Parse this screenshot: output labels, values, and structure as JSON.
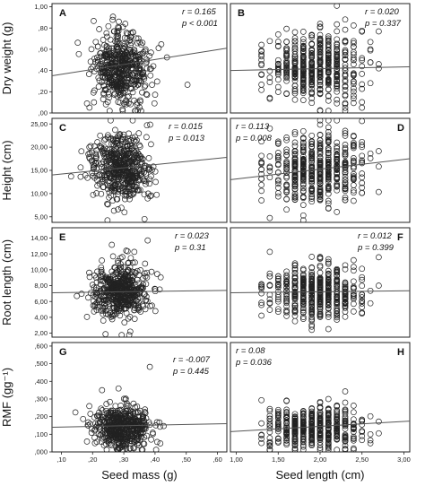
{
  "chart_data": [
    {
      "type": "scatter",
      "panel": "A",
      "col": 0,
      "row": 0,
      "ylabel": "Dry weight (g)",
      "xlabel": "",
      "x_domain": [
        0.07,
        0.63
      ],
      "ylim": [
        0.0,
        1.03
      ],
      "yticks": [
        ",00",
        ",20",
        ",40",
        ",60",
        ",80",
        "1,00"
      ],
      "ytick_values": [
        0,
        0.2,
        0.4,
        0.6,
        0.8,
        1.0
      ],
      "r": "r = 0.165",
      "p": "p < 0.001",
      "fit": [
        [
          0.07,
          0.35
        ],
        [
          0.63,
          0.61
        ]
      ],
      "x_center": 0.29,
      "x_spread": 0.045,
      "y_center": 0.43,
      "y_spread": 0.16,
      "n": 520
    },
    {
      "type": "scatter",
      "panel": "B",
      "col": 1,
      "row": 0,
      "ylabel": "",
      "xlabel": "",
      "x_domain": [
        0.93,
        3.07
      ],
      "ylim": [
        0.0,
        1.03
      ],
      "r": "r = 0.020",
      "p": "p = 0.337",
      "fit": [
        [
          0.93,
          0.4
        ],
        [
          3.07,
          0.435
        ]
      ],
      "x_levels": [
        1.3,
        1.4,
        1.5,
        1.6,
        1.7,
        1.8,
        1.9,
        2.0,
        2.1,
        2.2,
        2.3,
        2.4,
        2.5,
        2.6,
        2.7
      ],
      "x_center": 1.95,
      "x_spread": 0.28,
      "y_center": 0.43,
      "y_spread": 0.16,
      "n": 520
    },
    {
      "type": "scatter",
      "panel": "C",
      "col": 0,
      "row": 1,
      "ylabel": "Height (cm)",
      "xlabel": "",
      "x_domain": [
        0.07,
        0.63
      ],
      "ylim": [
        3.8,
        26.2
      ],
      "yticks": [
        "5,00",
        "10,00",
        "15,00",
        "20,00",
        "25,00"
      ],
      "ytick_values": [
        5,
        10,
        15,
        20,
        25
      ],
      "r": "r = 0.015",
      "p": "p = 0.013",
      "fit": [
        [
          0.07,
          14.0
        ],
        [
          0.63,
          17.8
        ]
      ],
      "x_center": 0.29,
      "x_spread": 0.045,
      "y_center": 15.5,
      "y_spread": 3.6,
      "n": 520
    },
    {
      "type": "scatter",
      "panel": "D",
      "col": 1,
      "row": 1,
      "ylabel": "",
      "xlabel": "",
      "x_domain": [
        0.93,
        3.07
      ],
      "ylim": [
        3.8,
        26.2
      ],
      "r": "r = 0.113",
      "p": "p = 0.008",
      "fit": [
        [
          0.93,
          13.0
        ],
        [
          3.07,
          17.5
        ]
      ],
      "x_levels": [
        1.3,
        1.4,
        1.5,
        1.6,
        1.7,
        1.8,
        1.9,
        2.0,
        2.1,
        2.2,
        2.3,
        2.4,
        2.5,
        2.6,
        2.7
      ],
      "x_center": 1.95,
      "x_spread": 0.28,
      "y_center": 15.5,
      "y_spread": 3.6,
      "n": 520
    },
    {
      "type": "scatter",
      "panel": "E",
      "col": 0,
      "row": 2,
      "ylabel": "Root length (cm)",
      "xlabel": "",
      "x_domain": [
        0.07,
        0.63
      ],
      "ylim": [
        1.5,
        15.3
      ],
      "yticks": [
        "2,00",
        "4,00",
        "6,00",
        "8,00",
        "10,00",
        "12,00",
        "14,00"
      ],
      "ytick_values": [
        2,
        4,
        6,
        8,
        10,
        12,
        14
      ],
      "r": "r = 0.023",
      "p": "p = 0.31",
      "fit": [
        [
          0.07,
          7.1
        ],
        [
          0.63,
          7.4
        ]
      ],
      "x_center": 0.29,
      "x_spread": 0.045,
      "y_center": 7.2,
      "y_spread": 1.6,
      "n": 520
    },
    {
      "type": "scatter",
      "panel": "F",
      "col": 1,
      "row": 2,
      "ylabel": "",
      "xlabel": "",
      "x_domain": [
        0.93,
        3.07
      ],
      "ylim": [
        1.5,
        15.3
      ],
      "r": "r = 0.012",
      "p": "p = 0.399",
      "fit": [
        [
          0.93,
          7.1
        ],
        [
          3.07,
          7.35
        ]
      ],
      "x_levels": [
        1.3,
        1.4,
        1.5,
        1.6,
        1.7,
        1.8,
        1.9,
        2.0,
        2.1,
        2.2,
        2.3,
        2.4,
        2.5,
        2.6,
        2.7
      ],
      "x_center": 1.95,
      "x_spread": 0.28,
      "y_center": 7.2,
      "y_spread": 1.6,
      "n": 520
    },
    {
      "type": "scatter",
      "panel": "G",
      "col": 0,
      "row": 3,
      "ylabel": "RMF (gg⁻¹)",
      "xlabel": "Seed mass (g)",
      "x_domain": [
        0.07,
        0.63
      ],
      "ylim": [
        0.0,
        0.62
      ],
      "yticks": [
        ",000",
        ",100",
        ",200",
        ",300",
        ",400",
        ",500",
        ",600"
      ],
      "ytick_values": [
        0,
        0.1,
        0.2,
        0.3,
        0.4,
        0.5,
        0.6
      ],
      "xticks": [
        ",10",
        ",20",
        ",30",
        ",40",
        ",50",
        ",60"
      ],
      "xtick_values": [
        0.1,
        0.2,
        0.3,
        0.4,
        0.5,
        0.6
      ],
      "r": "r = -0.007",
      "p": "p = 0.445",
      "fit": [
        [
          0.07,
          0.14
        ],
        [
          0.63,
          0.16
        ]
      ],
      "x_center": 0.29,
      "x_spread": 0.045,
      "y_center": 0.14,
      "y_spread": 0.06,
      "n": 520
    },
    {
      "type": "scatter",
      "panel": "H",
      "col": 1,
      "row": 3,
      "ylabel": "",
      "xlabel": "Seed length (cm)",
      "x_domain": [
        0.93,
        3.07
      ],
      "ylim": [
        0.0,
        0.62
      ],
      "xticks": [
        "1,00",
        "1,50",
        "2,00",
        "2,50",
        "3,00"
      ],
      "xtick_values": [
        1.0,
        1.5,
        2.0,
        2.5,
        3.0
      ],
      "r": "r = 0.08",
      "p": "p = 0.036",
      "fit": [
        [
          0.93,
          0.115
        ],
        [
          3.07,
          0.175
        ]
      ],
      "x_levels": [
        1.3,
        1.4,
        1.5,
        1.6,
        1.7,
        1.8,
        1.9,
        2.0,
        2.1,
        2.2,
        2.3,
        2.4,
        2.5,
        2.6,
        2.7
      ],
      "x_center": 1.95,
      "x_spread": 0.28,
      "y_center": 0.14,
      "y_spread": 0.06,
      "n": 520
    }
  ]
}
